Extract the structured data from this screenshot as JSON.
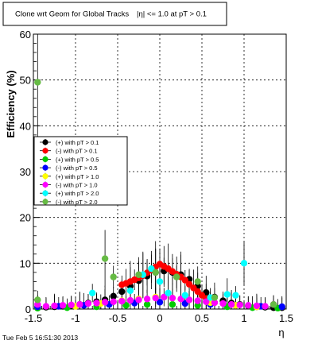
{
  "title": "Clone wrt Geom for Global Tracks",
  "title_cut": "|η| <= 1.0 at pT > 0.1",
  "timestamp": "Tue Feb  5 16:51:30 2013",
  "chart_data": {
    "type": "scatter",
    "xlabel": "η",
    "ylabel": "Efficiency (%)",
    "xlim": [
      -1.5,
      1.5
    ],
    "ylim": [
      0,
      60
    ],
    "xticks": [
      "-1.5",
      "-1",
      "-0.5",
      "0",
      "0.5",
      "1",
      "1.5"
    ],
    "yticks": [
      "0",
      "10",
      "20",
      "30",
      "40",
      "50",
      "60"
    ],
    "grid": true,
    "legend_position": "left-middle",
    "colors": {
      "s1": "#000000",
      "s2": "#ff0000",
      "s3": "#00cc00",
      "s4": "#0000ff",
      "s5": "#ffff00",
      "s6": "#ff00ff",
      "s7": "#00ffff",
      "s8": "#66bb44"
    },
    "series": [
      {
        "key": "s1",
        "name": "(+) with pT > 0.1",
        "points": [
          {
            "x": -1.45,
            "y": 0.3
          },
          {
            "x": -1.35,
            "y": 0.4
          },
          {
            "x": -1.25,
            "y": 0.5
          },
          {
            "x": -1.15,
            "y": 0.6
          },
          {
            "x": -1.05,
            "y": 0.8
          },
          {
            "x": -0.95,
            "y": 1.0
          },
          {
            "x": -0.85,
            "y": 1.3
          },
          {
            "x": -0.75,
            "y": 1.6
          },
          {
            "x": -0.65,
            "y": 2.0
          },
          {
            "x": -0.55,
            "y": 2.8
          },
          {
            "x": -0.45,
            "y": 3.8
          },
          {
            "x": -0.35,
            "y": 5.0
          },
          {
            "x": -0.25,
            "y": 6.2
          },
          {
            "x": -0.15,
            "y": 7.2
          },
          {
            "x": -0.05,
            "y": 8.0
          },
          {
            "x": 0.05,
            "y": 8.3
          },
          {
            "x": 0.15,
            "y": 8.0
          },
          {
            "x": 0.25,
            "y": 7.5
          },
          {
            "x": 0.35,
            "y": 6.5
          },
          {
            "x": 0.45,
            "y": 5.0
          },
          {
            "x": 0.55,
            "y": 3.6
          },
          {
            "x": 0.65,
            "y": 2.6
          },
          {
            "x": 0.75,
            "y": 1.8
          },
          {
            "x": 0.85,
            "y": 1.3
          },
          {
            "x": 0.95,
            "y": 1.0
          },
          {
            "x": 1.05,
            "y": 0.7
          },
          {
            "x": 1.15,
            "y": 0.5
          },
          {
            "x": 1.25,
            "y": 0.4
          },
          {
            "x": 1.35,
            "y": 0.3
          },
          {
            "x": 1.45,
            "y": 0.3
          }
        ]
      },
      {
        "key": "s2",
        "name": "(-) with pT > 0.1",
        "points": [
          {
            "x": -0.45,
            "y": 5.3
          },
          {
            "x": -0.4,
            "y": 5.6
          },
          {
            "x": -0.35,
            "y": 6.0
          },
          {
            "x": -0.3,
            "y": 6.4
          },
          {
            "x": -0.25,
            "y": 6.8
          },
          {
            "x": -0.2,
            "y": 7.3
          },
          {
            "x": -0.15,
            "y": 7.9
          },
          {
            "x": -0.1,
            "y": 8.5
          },
          {
            "x": -0.05,
            "y": 9.2
          },
          {
            "x": 0.0,
            "y": 9.8
          },
          {
            "x": 0.05,
            "y": 9.3
          },
          {
            "x": 0.1,
            "y": 8.8
          },
          {
            "x": 0.15,
            "y": 8.2
          },
          {
            "x": 0.2,
            "y": 7.6
          },
          {
            "x": 0.25,
            "y": 7.0
          },
          {
            "x": 0.3,
            "y": 6.3
          },
          {
            "x": 0.35,
            "y": 5.4
          },
          {
            "x": 0.4,
            "y": 4.6
          },
          {
            "x": 0.45,
            "y": 3.8
          },
          {
            "x": 0.5,
            "y": 3.0
          },
          {
            "x": 0.55,
            "y": 2.3
          },
          {
            "x": 0.6,
            "y": 1.8
          },
          {
            "x": 0.65,
            "y": 1.4
          }
        ]
      },
      {
        "key": "s3",
        "name": "(+) with pT > 0.5",
        "points": [
          {
            "x": -1.45,
            "y": 0.2
          },
          {
            "x": -1.1,
            "y": 0.3
          },
          {
            "x": -0.75,
            "y": 0.5
          },
          {
            "x": -0.4,
            "y": 0.8
          },
          {
            "x": -0.15,
            "y": 1.0
          },
          {
            "x": 0.15,
            "y": 1.0
          },
          {
            "x": 0.45,
            "y": 0.8
          },
          {
            "x": 0.8,
            "y": 0.5
          },
          {
            "x": 1.1,
            "y": 0.3
          },
          {
            "x": 1.4,
            "y": 0.2
          }
        ]
      },
      {
        "key": "s4",
        "name": "(-) with pT > 0.5",
        "points": [
          {
            "x": -1.45,
            "y": 0.5
          },
          {
            "x": -1.2,
            "y": 0.6
          },
          {
            "x": -0.9,
            "y": 0.8
          },
          {
            "x": -0.6,
            "y": 1.0
          },
          {
            "x": -0.3,
            "y": 1.3
          },
          {
            "x": 0.0,
            "y": 1.5
          },
          {
            "x": 0.3,
            "y": 1.2
          },
          {
            "x": 0.6,
            "y": 1.0
          },
          {
            "x": 0.9,
            "y": 0.8
          },
          {
            "x": 1.2,
            "y": 0.6
          },
          {
            "x": 1.45,
            "y": 0.5
          }
        ]
      },
      {
        "key": "s5",
        "name": "(+) with pT > 1.0",
        "points": [
          {
            "x": -1.0,
            "y": 0.6
          },
          {
            "x": -0.7,
            "y": 1.2
          },
          {
            "x": -0.45,
            "y": 1.8
          },
          {
            "x": -0.25,
            "y": 2.2
          },
          {
            "x": -0.05,
            "y": 2.6
          },
          {
            "x": 0.15,
            "y": 2.4
          },
          {
            "x": 0.35,
            "y": 2.0
          },
          {
            "x": 0.6,
            "y": 1.4
          },
          {
            "x": 0.9,
            "y": 0.8
          },
          {
            "x": 1.15,
            "y": 0.5
          }
        ]
      },
      {
        "key": "s6",
        "name": "(-) with pT > 1.0",
        "points": [
          {
            "x": -1.45,
            "y": 1.0
          },
          {
            "x": -1.35,
            "y": 0.6
          },
          {
            "x": -1.25,
            "y": 0.7
          },
          {
            "x": -1.15,
            "y": 0.8
          },
          {
            "x": -1.05,
            "y": 0.9
          },
          {
            "x": -0.95,
            "y": 1.0
          },
          {
            "x": -0.85,
            "y": 1.2
          },
          {
            "x": -0.75,
            "y": 1.3
          },
          {
            "x": -0.65,
            "y": 1.5
          },
          {
            "x": -0.55,
            "y": 1.6
          },
          {
            "x": -0.45,
            "y": 1.7
          },
          {
            "x": -0.35,
            "y": 1.9
          },
          {
            "x": -0.25,
            "y": 2.0
          },
          {
            "x": -0.15,
            "y": 2.2
          },
          {
            "x": -0.05,
            "y": 2.4
          },
          {
            "x": 0.05,
            "y": 2.6
          },
          {
            "x": 0.15,
            "y": 2.4
          },
          {
            "x": 0.25,
            "y": 2.2
          },
          {
            "x": 0.35,
            "y": 2.0
          },
          {
            "x": 0.45,
            "y": 1.8
          },
          {
            "x": 0.55,
            "y": 1.6
          },
          {
            "x": 0.65,
            "y": 1.4
          },
          {
            "x": 0.75,
            "y": 1.2
          },
          {
            "x": 0.85,
            "y": 1.0
          },
          {
            "x": 0.95,
            "y": 0.9
          },
          {
            "x": 1.05,
            "y": 0.8
          },
          {
            "x": 1.15,
            "y": 0.7
          },
          {
            "x": 1.25,
            "y": 0.6
          },
          {
            "x": 1.35,
            "y": 1.0
          }
        ]
      },
      {
        "key": "s7",
        "name": "(+) with pT > 2.0",
        "points": [
          {
            "x": -0.8,
            "y": 3.5
          },
          {
            "x": -0.35,
            "y": 4.0
          },
          {
            "x": -0.2,
            "y": 7.5
          },
          {
            "x": -0.1,
            "y": 8.8
          },
          {
            "x": 0.0,
            "y": 6.0
          },
          {
            "x": 0.1,
            "y": 3.5
          },
          {
            "x": 0.3,
            "y": 3.0
          },
          {
            "x": 0.6,
            "y": 2.5
          },
          {
            "x": 0.8,
            "y": 3.2
          },
          {
            "x": 0.9,
            "y": 3.0
          },
          {
            "x": 1.0,
            "y": 10.0
          }
        ]
      },
      {
        "key": "s8",
        "name": "(-) with pT > 2.0",
        "points": [
          {
            "x": -1.45,
            "y": 49.5
          },
          {
            "x": -1.45,
            "y": 2.0
          },
          {
            "x": -0.65,
            "y": 11.0
          },
          {
            "x": -0.55,
            "y": 7.0
          },
          {
            "x": -0.25,
            "y": 7.5
          },
          {
            "x": -0.05,
            "y": 8.0
          },
          {
            "x": 0.2,
            "y": 7.0
          },
          {
            "x": 0.45,
            "y": 6.0
          },
          {
            "x": 0.65,
            "y": 2.5
          },
          {
            "x": 1.35,
            "y": 1.0
          }
        ]
      }
    ]
  }
}
